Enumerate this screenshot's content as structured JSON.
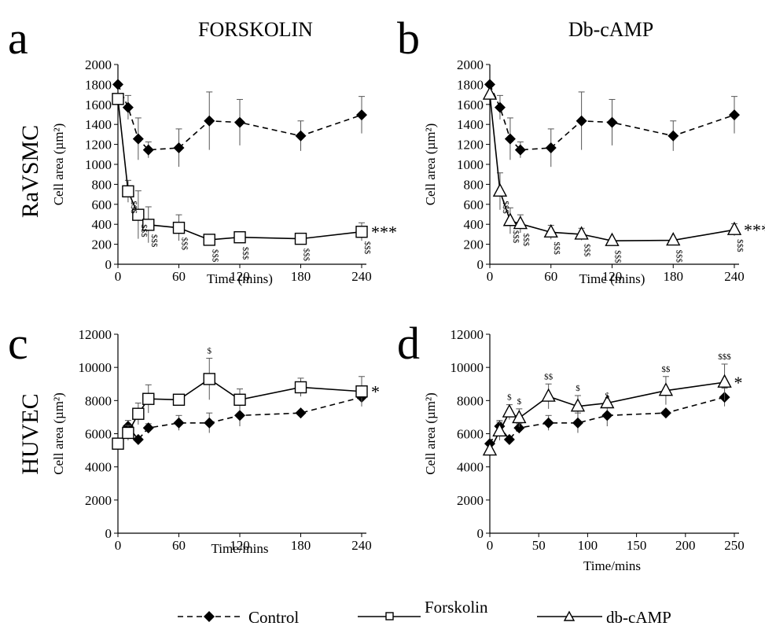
{
  "figure": {
    "row_labels": [
      "RaVSMC",
      "HUVEC"
    ],
    "legend": [
      "Control",
      "Forskolin",
      "db-cAMP"
    ]
  },
  "chart_data": [
    {
      "panel": "a",
      "title": "FORSKOLIN",
      "type": "line",
      "xlabel": "Time (mins)",
      "ylabel": "Cell area (µm²)",
      "xticks": [
        0,
        60,
        120,
        180,
        240
      ],
      "xlim": [
        0,
        240
      ],
      "ylim": [
        0,
        2000
      ],
      "yticks": [
        0,
        200,
        400,
        600,
        800,
        1000,
        1200,
        1400,
        1600,
        1800,
        2000
      ],
      "series": [
        {
          "name": "Control",
          "style": "dashed",
          "marker": "diamond",
          "x": [
            0,
            10,
            20,
            30,
            60,
            90,
            120,
            180,
            240
          ],
          "y": [
            1800,
            1570,
            1255,
            1145,
            1165,
            1435,
            1420,
            1285,
            1495
          ],
          "err": [
            0,
            120,
            210,
            80,
            190,
            290,
            230,
            150,
            185
          ]
        },
        {
          "name": "Forskolin",
          "style": "solid",
          "marker": "square",
          "x": [
            0,
            10,
            20,
            30,
            60,
            90,
            120,
            180,
            240
          ],
          "y": [
            1655,
            730,
            495,
            395,
            365,
            245,
            270,
            255,
            325
          ],
          "err": [
            0,
            110,
            240,
            180,
            130,
            0,
            0,
            0,
            90
          ]
        }
      ],
      "sig_labels": [
        {
          "x": 10,
          "text": "$$$"
        },
        {
          "x": 20,
          "text": "$$$"
        },
        {
          "x": 30,
          "text": "$$$"
        },
        {
          "x": 60,
          "text": "$$$"
        },
        {
          "x": 90,
          "text": "$$$"
        },
        {
          "x": 120,
          "text": "$$$"
        },
        {
          "x": 180,
          "text": "$$$"
        },
        {
          "x": 240,
          "text": "$$$"
        }
      ],
      "overall": "***"
    },
    {
      "panel": "b",
      "title": "Db-cAMP",
      "type": "line",
      "xlabel": "Time (mins)",
      "ylabel": "Cell area (µm²)",
      "xticks": [
        0,
        60,
        120,
        180,
        240
      ],
      "xlim": [
        0,
        240
      ],
      "ylim": [
        0,
        2000
      ],
      "yticks": [
        0,
        200,
        400,
        600,
        800,
        1000,
        1200,
        1400,
        1600,
        1800,
        2000
      ],
      "series": [
        {
          "name": "Control",
          "style": "dashed",
          "marker": "diamond",
          "x": [
            0,
            10,
            20,
            30,
            60,
            90,
            120,
            180,
            240
          ],
          "y": [
            1800,
            1570,
            1255,
            1145,
            1165,
            1435,
            1420,
            1285,
            1495
          ],
          "err": [
            0,
            120,
            210,
            80,
            190,
            290,
            230,
            150,
            185
          ]
        },
        {
          "name": "db-cAMP",
          "style": "solid",
          "marker": "triangle",
          "x": [
            0,
            10,
            20,
            30,
            60,
            90,
            120,
            180,
            240
          ],
          "y": [
            1700,
            730,
            435,
            405,
            320,
            300,
            235,
            240,
            345
          ],
          "err": [
            0,
            185,
            130,
            90,
            70,
            60,
            0,
            0,
            60
          ]
        }
      ],
      "sig_labels": [
        {
          "x": 10,
          "text": "$$$"
        },
        {
          "x": 20,
          "text": "$$$"
        },
        {
          "x": 30,
          "text": "$$$"
        },
        {
          "x": 60,
          "text": "$$$"
        },
        {
          "x": 90,
          "text": "$$$"
        },
        {
          "x": 120,
          "text": "$$$"
        },
        {
          "x": 180,
          "text": "$$$"
        },
        {
          "x": 240,
          "text": "$$$"
        }
      ],
      "overall": "***"
    },
    {
      "panel": "c",
      "title": "",
      "type": "line",
      "xlabel": "Time/mins",
      "ylabel": "Cell area (µm²)",
      "xticks": [
        0,
        60,
        120,
        180,
        240
      ],
      "xlim": [
        0,
        240
      ],
      "ylim": [
        0,
        12000
      ],
      "yticks": [
        0,
        2000,
        4000,
        6000,
        8000,
        10000,
        12000
      ],
      "series": [
        {
          "name": "Control",
          "style": "dashed",
          "marker": "diamond",
          "x": [
            0,
            10,
            20,
            30,
            60,
            90,
            120,
            180,
            240
          ],
          "y": [
            5400,
            6450,
            5650,
            6350,
            6650,
            6650,
            7100,
            7250,
            8200
          ],
          "err": [
            0,
            350,
            0,
            250,
            450,
            600,
            650,
            0,
            550
          ]
        },
        {
          "name": "Forskolin",
          "style": "solid",
          "marker": "square",
          "x": [
            0,
            10,
            20,
            30,
            60,
            90,
            120,
            180,
            240
          ],
          "y": [
            5400,
            6050,
            7200,
            8100,
            8050,
            9300,
            8050,
            8800,
            8550
          ],
          "err": [
            0,
            450,
            650,
            850,
            0,
            1250,
            650,
            550,
            900
          ]
        }
      ],
      "sig_labels": [
        {
          "x": 90,
          "text": "$"
        }
      ],
      "overall": "*"
    },
    {
      "panel": "d",
      "title": "",
      "type": "line",
      "xlabel": "Time/mins",
      "ylabel": "Cell area (µm²)",
      "xticks": [
        0,
        50,
        100,
        150,
        200,
        250
      ],
      "xlim": [
        0,
        250
      ],
      "ylim": [
        0,
        12000
      ],
      "yticks": [
        0,
        2000,
        4000,
        6000,
        8000,
        10000,
        12000
      ],
      "series": [
        {
          "name": "Control",
          "style": "dashed",
          "marker": "diamond",
          "x": [
            0,
            10,
            20,
            30,
            60,
            90,
            120,
            180,
            240
          ],
          "y": [
            5400,
            6450,
            5650,
            6350,
            6650,
            6650,
            7100,
            7250,
            8200
          ],
          "err": [
            0,
            350,
            0,
            250,
            450,
            600,
            650,
            0,
            550
          ]
        },
        {
          "name": "db-cAMP",
          "style": "solid",
          "marker": "triangle",
          "x": [
            0,
            10,
            20,
            30,
            60,
            90,
            120,
            180,
            240
          ],
          "y": [
            5000,
            6150,
            7300,
            6950,
            8250,
            7650,
            7850,
            8600,
            9100
          ],
          "err": [
            0,
            550,
            450,
            550,
            750,
            650,
            0,
            850,
            1100
          ]
        }
      ],
      "sig_labels": [
        {
          "x": 20,
          "text": "$"
        },
        {
          "x": 30,
          "text": "$"
        },
        {
          "x": 60,
          "text": "$$"
        },
        {
          "x": 90,
          "text": "$"
        },
        {
          "x": 120,
          "text": "$"
        },
        {
          "x": 180,
          "text": "$$"
        },
        {
          "x": 240,
          "text": "$$$"
        }
      ],
      "overall": "*"
    }
  ]
}
